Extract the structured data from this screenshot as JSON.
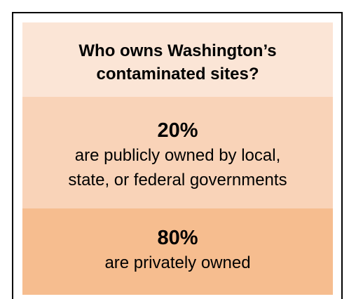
{
  "title": [
    "Who owns Washington’s",
    "contaminated sites?"
  ],
  "sections": [
    {
      "figure": "20%",
      "lines": [
        "are publicly owned by local,",
        "state, or federal governments"
      ]
    },
    {
      "figure": "80%",
      "lines": [
        "are privately owned"
      ]
    }
  ]
}
